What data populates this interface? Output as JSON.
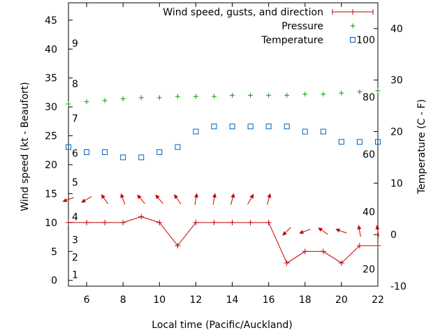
{
  "chart_data": {
    "type": "line",
    "xlabel": "Local time (Pacific/Auckland)",
    "ylabel": "Wind speed (kt - Beaufort)",
    "y2label": "Temperature (C - F)",
    "xlim": [
      5,
      22
    ],
    "ylim": [
      -1,
      48
    ],
    "y2lim": [
      -10,
      45
    ],
    "xticks": [
      6,
      8,
      10,
      12,
      14,
      16,
      18,
      20,
      22
    ],
    "yticks": [
      0,
      5,
      10,
      15,
      20,
      25,
      30,
      35,
      40,
      45
    ],
    "y2ticks": [
      -10,
      0,
      10,
      20,
      30,
      40
    ],
    "beaufort_labels": [
      {
        "label": "1",
        "y": 1
      },
      {
        "label": "2",
        "y": 4
      },
      {
        "label": "3",
        "y": 7
      },
      {
        "label": "4",
        "y": 11
      },
      {
        "label": "5",
        "y": 17
      },
      {
        "label": "6",
        "y": 22
      },
      {
        "label": "7",
        "y": 28
      },
      {
        "label": "8",
        "y": 34
      },
      {
        "label": "9",
        "y": 41
      }
    ],
    "fahrenheit_labels": [
      {
        "label": "20",
        "temp": -6.7
      },
      {
        "label": "40",
        "temp": 4.4
      },
      {
        "label": "60",
        "temp": 15.6
      },
      {
        "label": "80",
        "temp": 26.7
      },
      {
        "label": "100",
        "temp": 37.8
      }
    ],
    "grid": false,
    "legend_position": "top-right",
    "legend": [
      {
        "name": "Wind speed, gusts, and direction",
        "marker": "line-plus",
        "color": "#c00000"
      },
      {
        "name": "Pressure",
        "marker": "plus",
        "color": "#00a000"
      },
      {
        "name": "Temperature",
        "marker": "square",
        "color": "#0060c0"
      }
    ],
    "series": [
      {
        "name": "Wind speed, gusts, and direction",
        "axis": "y",
        "color": "#c00000",
        "x": [
          5,
          6,
          7,
          8,
          9,
          10,
          11,
          12,
          13,
          14,
          15,
          16,
          17,
          18,
          19,
          20,
          21,
          22
        ],
        "values": [
          10,
          10,
          10,
          10,
          11,
          10,
          6,
          10,
          10,
          10,
          10,
          10,
          3,
          5,
          5,
          3,
          6,
          6
        ]
      },
      {
        "name": "Pressure",
        "axis": "y",
        "color": "#00a000",
        "x": [
          5,
          6,
          7,
          8,
          9,
          10,
          11,
          12,
          13,
          14,
          15,
          16,
          17,
          18,
          19,
          20,
          21,
          22
        ],
        "values": [
          30.5,
          30.9,
          31.1,
          31.4,
          31.6,
          31.6,
          31.8,
          31.8,
          31.8,
          32.0,
          32.0,
          32.0,
          32.0,
          32.2,
          32.2,
          32.4,
          32.6,
          32.8
        ]
      },
      {
        "name": "Temperature",
        "axis": "y2",
        "color": "#0060c0",
        "x": [
          5,
          6,
          7,
          8,
          9,
          10,
          11,
          12,
          13,
          14,
          15,
          16,
          17,
          18,
          19,
          20,
          21,
          22
        ],
        "values": [
          17,
          16,
          16,
          15,
          15,
          16,
          17,
          20,
          21,
          21,
          21,
          21,
          21,
          20,
          20,
          18,
          18,
          18
        ]
      }
    ],
    "direction_arrows": {
      "color": "#c00000",
      "y_level": 14,
      "low_y_level": 8.5,
      "x": [
        5,
        6,
        7,
        8,
        9,
        10,
        11,
        12,
        13,
        14,
        15,
        16,
        17,
        18,
        19,
        20,
        21,
        22
      ],
      "angles_deg": [
        200,
        210,
        125,
        110,
        130,
        130,
        125,
        80,
        80,
        75,
        60,
        75,
        225,
        200,
        145,
        160,
        100,
        100
      ],
      "low_row_from_index": 12
    }
  }
}
